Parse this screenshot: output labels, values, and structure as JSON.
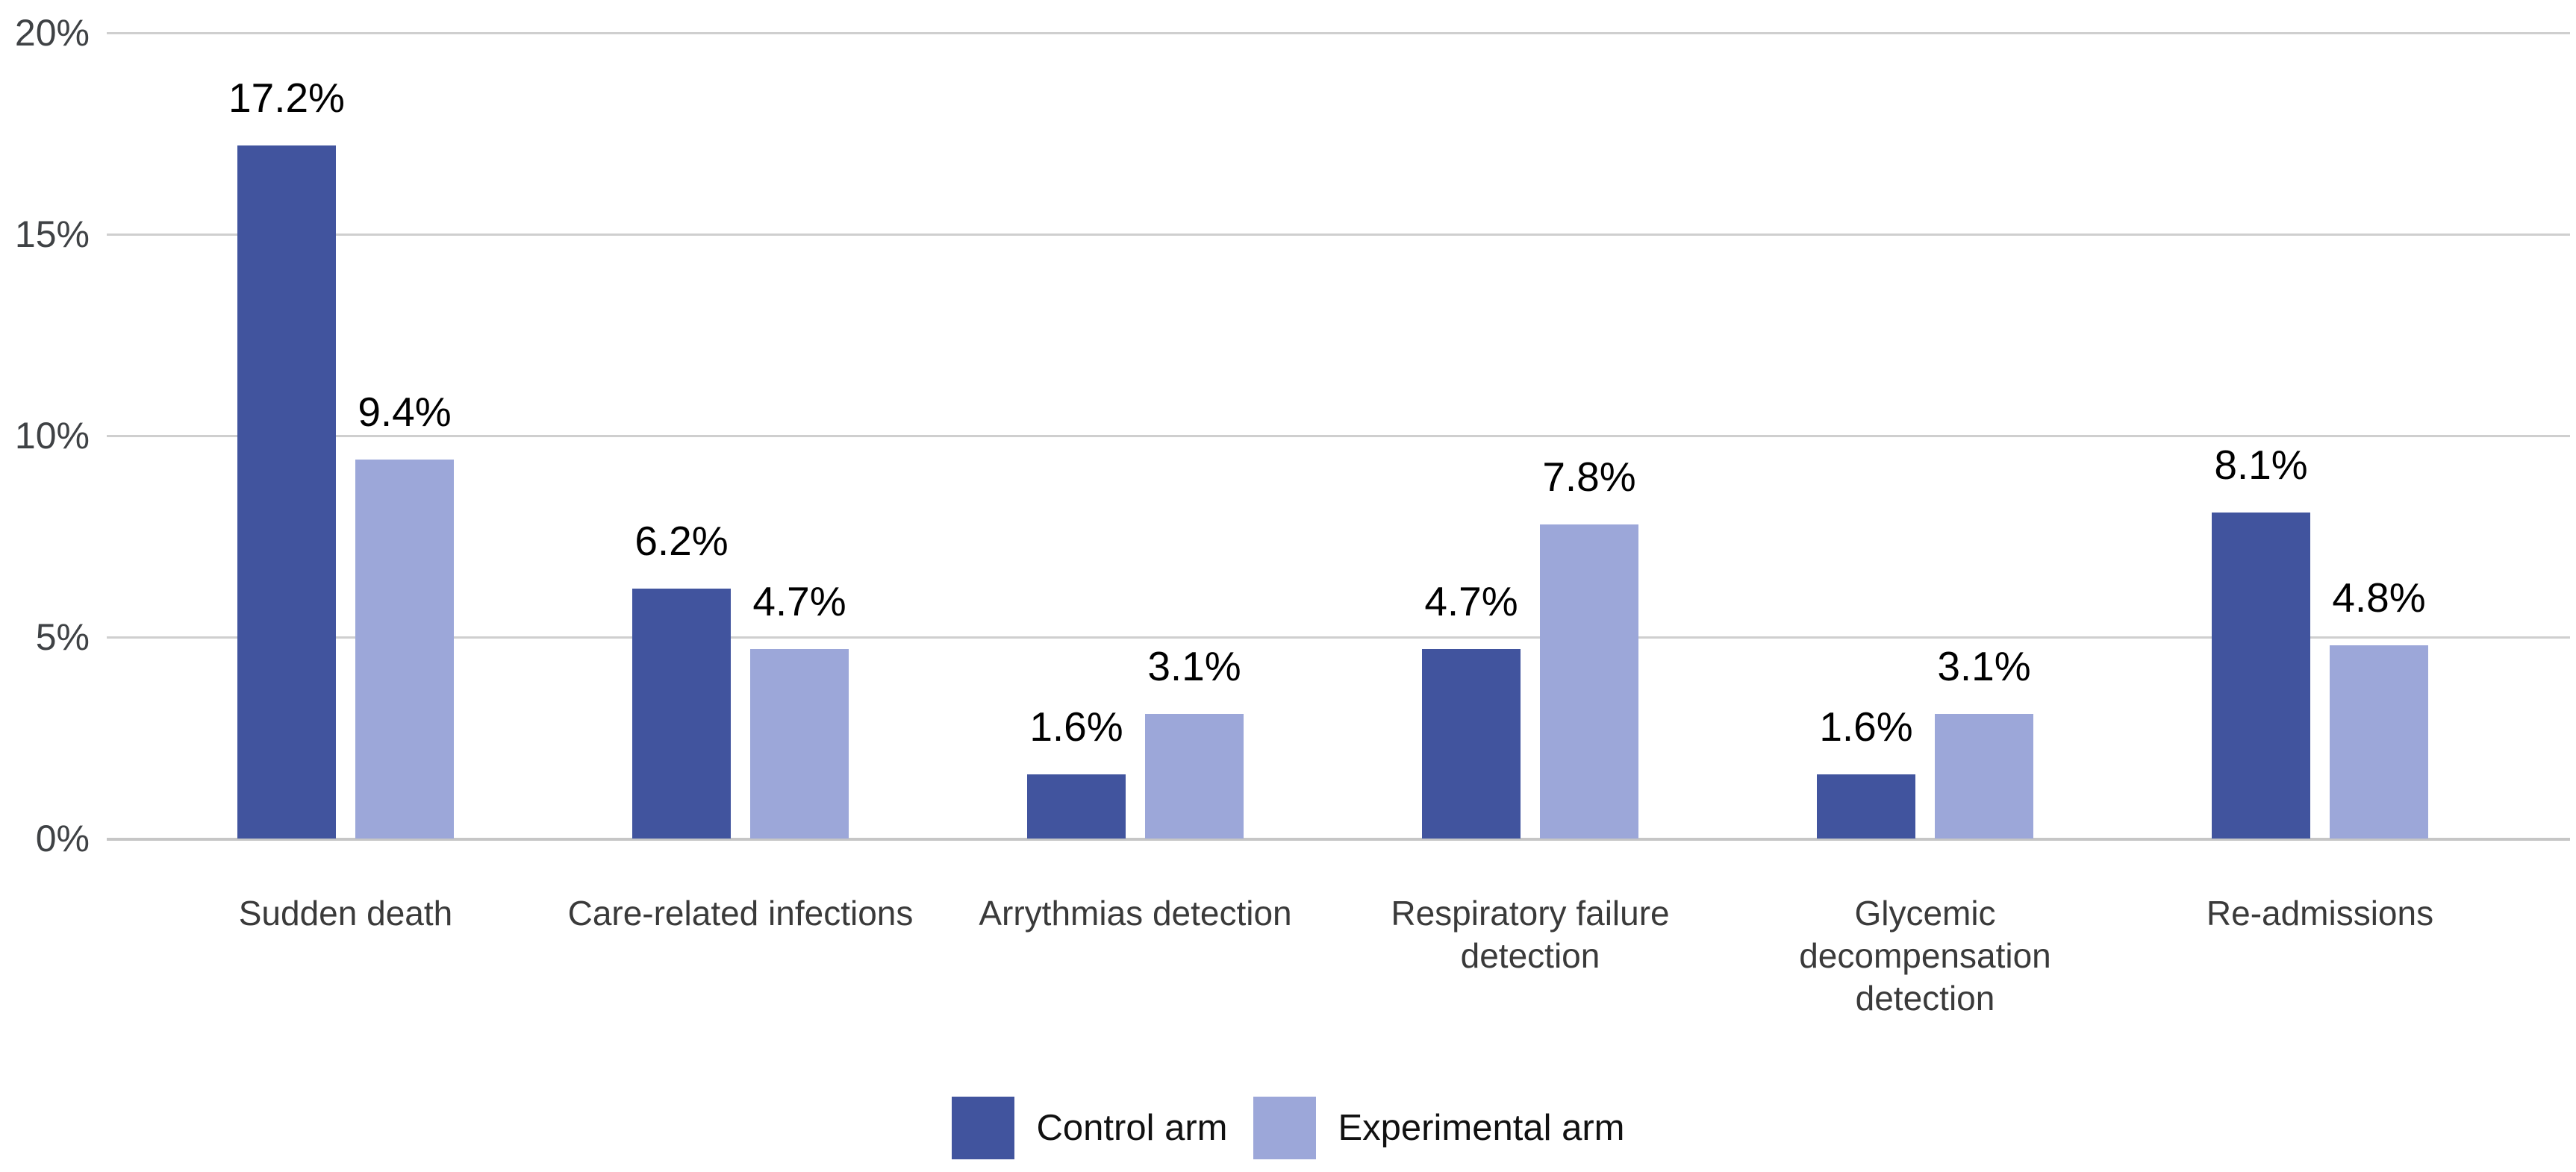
{
  "chart_data": {
    "type": "bar",
    "title": "",
    "categories": [
      "Sudden death",
      "Care-related infections",
      "Arrythmias detection",
      "Respiratory failure detection",
      "Glycemic decompensation detection",
      "Re-admissions"
    ],
    "series": [
      {
        "name": "Control arm",
        "color": "#41549e",
        "values": [
          17.2,
          6.2,
          1.6,
          4.7,
          1.6,
          8.1
        ],
        "labels": [
          "17.2%",
          "6.2%",
          "1.6%",
          "4.7%",
          "1.6%",
          "8.1%"
        ]
      },
      {
        "name": "Experimental arm",
        "color": "#9ca7d9",
        "values": [
          9.4,
          4.7,
          3.1,
          7.8,
          3.1,
          4.8
        ],
        "labels": [
          "9.4%",
          "4.7%",
          "3.1%",
          "7.8%",
          "3.1%",
          "4.8%"
        ]
      }
    ],
    "ylim": [
      0,
      20
    ],
    "yticks": [
      {
        "value": 20,
        "label": "20%"
      },
      {
        "value": 15,
        "label": "15%"
      },
      {
        "value": 10,
        "label": "10%"
      },
      {
        "value": 5,
        "label": "5%"
      },
      {
        "value": 0,
        "label": "0%"
      }
    ],
    "grid": true,
    "grid_color": "#cfcfcf",
    "legend_position": "bottom",
    "value_label_color": "#000000",
    "axis_label_color": "#3f4245",
    "category_label_color": "#3a3a3a",
    "background_color": "#ffffff"
  }
}
